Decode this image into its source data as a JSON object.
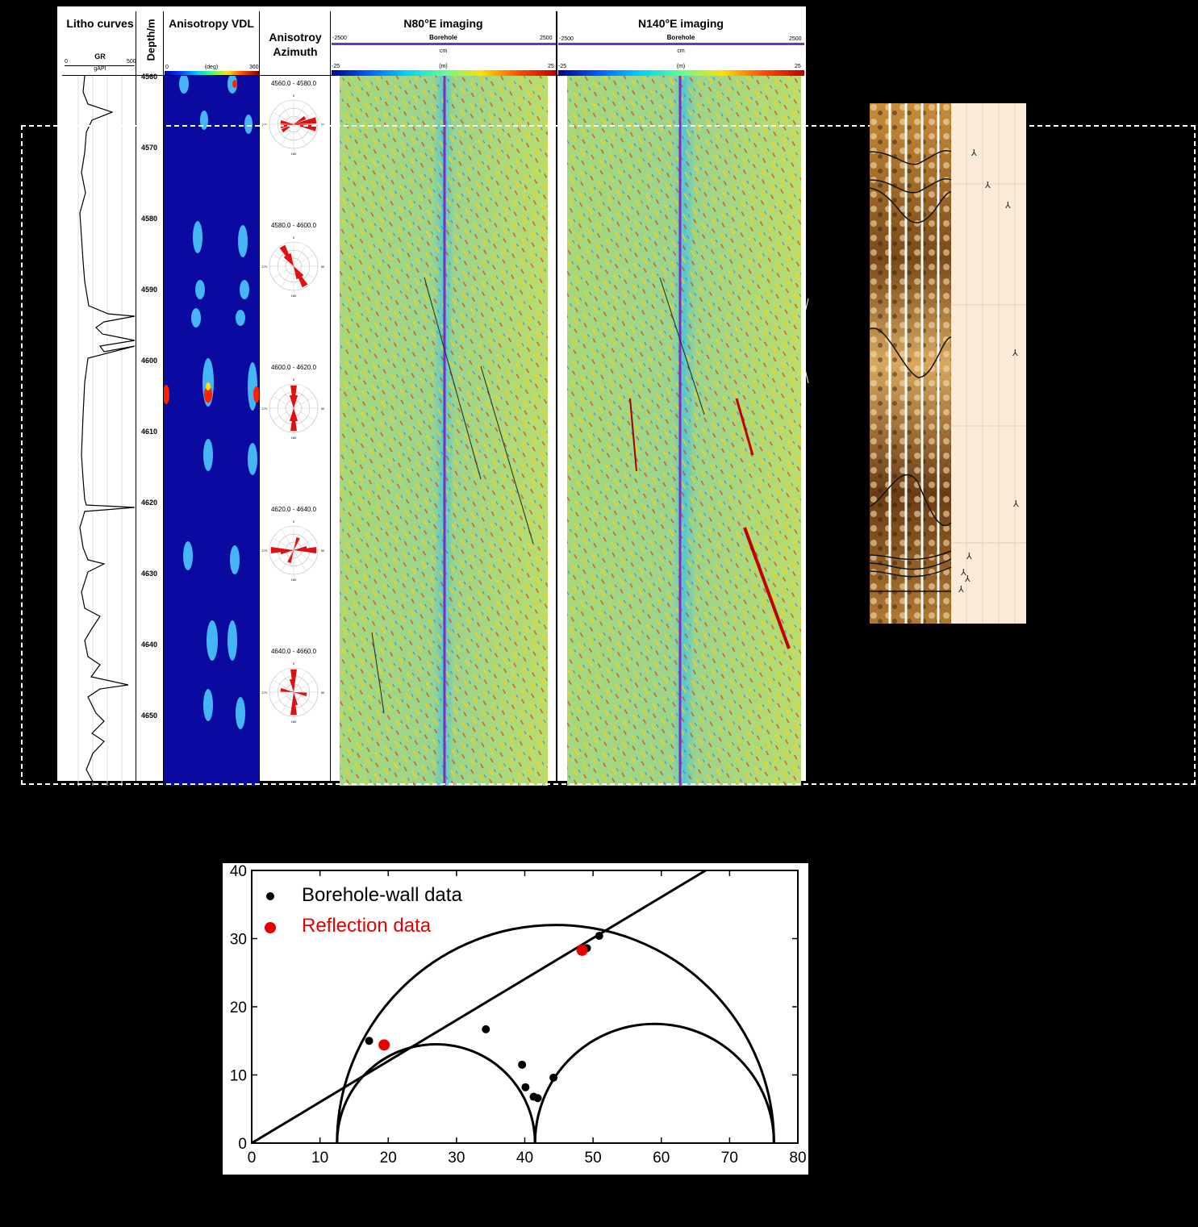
{
  "log_panel": {
    "litho": {
      "title": "Litho curves",
      "curve": "GR",
      "unit": "gAPI",
      "min": "0",
      "max": "500"
    },
    "depth": {
      "title": "Depth/m",
      "ticks": [
        "4560",
        "4570",
        "4580",
        "4590",
        "4600",
        "4610",
        "4620",
        "4630",
        "4640",
        "4650"
      ]
    },
    "vdl": {
      "title": "Anisotropy VDL",
      "min": "0",
      "unit": "(deg)",
      "max": "360"
    },
    "azimuth": {
      "title_line1": "Anisotroy",
      "title_line2": "Azimuth",
      "roses": [
        {
          "label": "4560.0 - 4580.0",
          "dirs": [
            80,
            100,
            280,
            260,
            60,
            240
          ]
        },
        {
          "label": "4580.0 - 4600.0",
          "dirs": [
            150,
            330,
            160,
            340,
            140,
            320
          ]
        },
        {
          "label": "4600.0 - 4620.0",
          "dirs": [
            0,
            180,
            10,
            190,
            350,
            170
          ]
        },
        {
          "label": "4620.0 - 4640.0",
          "dirs": [
            90,
            270,
            80,
            260,
            20,
            200
          ]
        },
        {
          "label": "4640.0 - 4660.0",
          "dirs": [
            0,
            180,
            100,
            280,
            350,
            170
          ]
        }
      ],
      "rose_ticks": [
        "0",
        "30",
        "60",
        "90",
        "120",
        "150",
        "180",
        "210",
        "240",
        "270",
        "300",
        "330"
      ]
    },
    "n80": {
      "title": "N80°E imaging",
      "left": "-2500",
      "center": "Borehole",
      "right": "2500",
      "unit": "cm",
      "cmin": "-25",
      "cunit": "(m)",
      "cmax": "25"
    },
    "n140": {
      "title": "N140°E imaging",
      "left": "-2500",
      "center": "Borehole",
      "right": "2500",
      "unit": "cm",
      "cmin": "-25",
      "cunit": "(m)",
      "cmax": "25"
    }
  },
  "colors": {
    "accent_line": "#7b2fbf",
    "bg": "#000000",
    "image_base": "#9ad97c",
    "vdl_base": "#0a0aa0"
  },
  "chart_data": {
    "type": "scatter",
    "title": "",
    "xlabel": "",
    "ylabel": "",
    "xlim": [
      0,
      80
    ],
    "ylim": [
      0,
      40
    ],
    "xticks": [
      "0",
      "10",
      "20",
      "30",
      "40",
      "50",
      "60",
      "70",
      "80"
    ],
    "yticks": [
      "0",
      "10",
      "20",
      "30",
      "40"
    ],
    "grid": false,
    "legend_position": "top-left",
    "series": [
      {
        "name": "Borehole-wall data",
        "color": "#000000",
        "points": [
          [
            17.2,
            15.0
          ],
          [
            34.3,
            16.7
          ],
          [
            39.6,
            11.5
          ],
          [
            40.1,
            8.2
          ],
          [
            41.3,
            6.8
          ],
          [
            41.9,
            6.6
          ],
          [
            44.2,
            9.6
          ],
          [
            49.1,
            28.6
          ],
          [
            50.9,
            30.4
          ]
        ]
      },
      {
        "name": "Reflection data",
        "color": "#e60000",
        "points": [
          [
            19.4,
            14.4
          ],
          [
            48.4,
            28.3
          ]
        ]
      }
    ],
    "circles": [
      {
        "center": 44.5,
        "radius": 32.0
      },
      {
        "center": 27.0,
        "radius": 14.5
      },
      {
        "center": 59.0,
        "radius": 17.5
      }
    ],
    "line": {
      "from": [
        0,
        0
      ],
      "to": [
        66.5,
        40
      ]
    }
  }
}
